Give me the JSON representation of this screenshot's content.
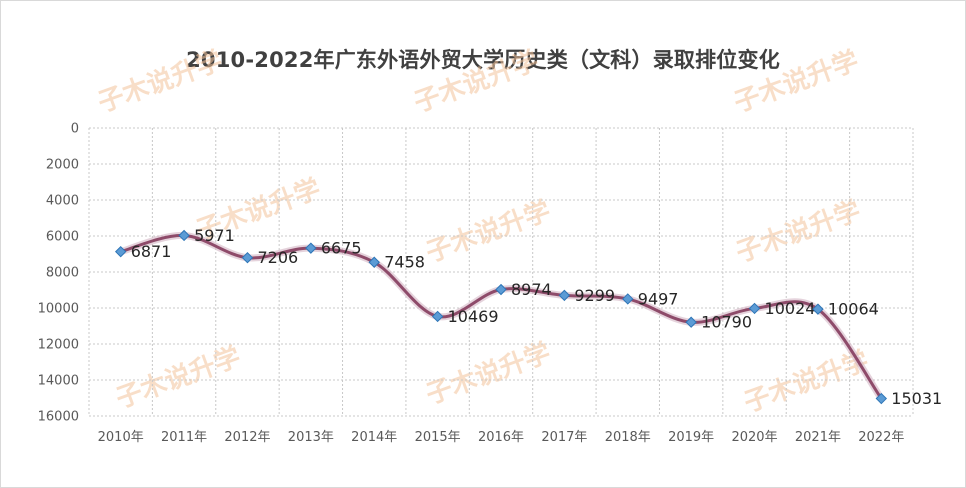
{
  "chart_data": {
    "type": "line",
    "title": "2010-2022年广东外语外贸大学历史类（文科）录取排位变化",
    "categories": [
      "2010年",
      "2011年",
      "2012年",
      "2013年",
      "2014年",
      "2015年",
      "2016年",
      "2017年",
      "2018年",
      "2019年",
      "2020年",
      "2021年",
      "2022年"
    ],
    "values": [
      6871,
      5971,
      7206,
      6675,
      7458,
      10469,
      8974,
      9299,
      9497,
      10790,
      10024,
      10064,
      15031
    ],
    "y_ticks": [
      0,
      2000,
      4000,
      6000,
      8000,
      10000,
      12000,
      14000,
      16000
    ],
    "ylim": [
      0,
      16000
    ],
    "y_inverted": true,
    "grid": "dotted",
    "legend": "none",
    "line_color": "#8e4b6a",
    "marker_color": "#5b9bd5",
    "smooth": true
  },
  "watermark": "子木说升学"
}
